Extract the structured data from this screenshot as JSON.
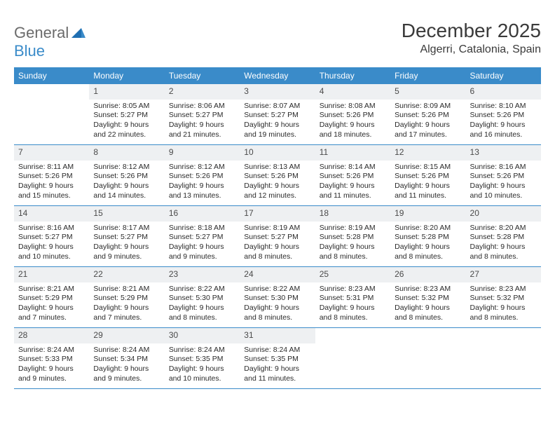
{
  "logo": {
    "text1": "General",
    "text2": "Blue"
  },
  "title": "December 2025",
  "location": "Algerri, Catalonia, Spain",
  "colors": {
    "header_bg": "#3a8bc9",
    "header_text": "#ffffff",
    "daybar_bg": "#eef0f2",
    "border": "#3a8bc9",
    "text": "#2a2a2a",
    "logo_gray": "#6b6b6b",
    "logo_blue": "#3a8bc9"
  },
  "dow": [
    "Sunday",
    "Monday",
    "Tuesday",
    "Wednesday",
    "Thursday",
    "Friday",
    "Saturday"
  ],
  "weeks": [
    [
      {
        "n": "",
        "sr": "",
        "ss": "",
        "dl": ""
      },
      {
        "n": "1",
        "sr": "Sunrise: 8:05 AM",
        "ss": "Sunset: 5:27 PM",
        "dl": "Daylight: 9 hours and 22 minutes."
      },
      {
        "n": "2",
        "sr": "Sunrise: 8:06 AM",
        "ss": "Sunset: 5:27 PM",
        "dl": "Daylight: 9 hours and 21 minutes."
      },
      {
        "n": "3",
        "sr": "Sunrise: 8:07 AM",
        "ss": "Sunset: 5:27 PM",
        "dl": "Daylight: 9 hours and 19 minutes."
      },
      {
        "n": "4",
        "sr": "Sunrise: 8:08 AM",
        "ss": "Sunset: 5:26 PM",
        "dl": "Daylight: 9 hours and 18 minutes."
      },
      {
        "n": "5",
        "sr": "Sunrise: 8:09 AM",
        "ss": "Sunset: 5:26 PM",
        "dl": "Daylight: 9 hours and 17 minutes."
      },
      {
        "n": "6",
        "sr": "Sunrise: 8:10 AM",
        "ss": "Sunset: 5:26 PM",
        "dl": "Daylight: 9 hours and 16 minutes."
      }
    ],
    [
      {
        "n": "7",
        "sr": "Sunrise: 8:11 AM",
        "ss": "Sunset: 5:26 PM",
        "dl": "Daylight: 9 hours and 15 minutes."
      },
      {
        "n": "8",
        "sr": "Sunrise: 8:12 AM",
        "ss": "Sunset: 5:26 PM",
        "dl": "Daylight: 9 hours and 14 minutes."
      },
      {
        "n": "9",
        "sr": "Sunrise: 8:12 AM",
        "ss": "Sunset: 5:26 PM",
        "dl": "Daylight: 9 hours and 13 minutes."
      },
      {
        "n": "10",
        "sr": "Sunrise: 8:13 AM",
        "ss": "Sunset: 5:26 PM",
        "dl": "Daylight: 9 hours and 12 minutes."
      },
      {
        "n": "11",
        "sr": "Sunrise: 8:14 AM",
        "ss": "Sunset: 5:26 PM",
        "dl": "Daylight: 9 hours and 11 minutes."
      },
      {
        "n": "12",
        "sr": "Sunrise: 8:15 AM",
        "ss": "Sunset: 5:26 PM",
        "dl": "Daylight: 9 hours and 11 minutes."
      },
      {
        "n": "13",
        "sr": "Sunrise: 8:16 AM",
        "ss": "Sunset: 5:26 PM",
        "dl": "Daylight: 9 hours and 10 minutes."
      }
    ],
    [
      {
        "n": "14",
        "sr": "Sunrise: 8:16 AM",
        "ss": "Sunset: 5:27 PM",
        "dl": "Daylight: 9 hours and 10 minutes."
      },
      {
        "n": "15",
        "sr": "Sunrise: 8:17 AM",
        "ss": "Sunset: 5:27 PM",
        "dl": "Daylight: 9 hours and 9 minutes."
      },
      {
        "n": "16",
        "sr": "Sunrise: 8:18 AM",
        "ss": "Sunset: 5:27 PM",
        "dl": "Daylight: 9 hours and 9 minutes."
      },
      {
        "n": "17",
        "sr": "Sunrise: 8:19 AM",
        "ss": "Sunset: 5:27 PM",
        "dl": "Daylight: 9 hours and 8 minutes."
      },
      {
        "n": "18",
        "sr": "Sunrise: 8:19 AM",
        "ss": "Sunset: 5:28 PM",
        "dl": "Daylight: 9 hours and 8 minutes."
      },
      {
        "n": "19",
        "sr": "Sunrise: 8:20 AM",
        "ss": "Sunset: 5:28 PM",
        "dl": "Daylight: 9 hours and 8 minutes."
      },
      {
        "n": "20",
        "sr": "Sunrise: 8:20 AM",
        "ss": "Sunset: 5:28 PM",
        "dl": "Daylight: 9 hours and 8 minutes."
      }
    ],
    [
      {
        "n": "21",
        "sr": "Sunrise: 8:21 AM",
        "ss": "Sunset: 5:29 PM",
        "dl": "Daylight: 9 hours and 7 minutes."
      },
      {
        "n": "22",
        "sr": "Sunrise: 8:21 AM",
        "ss": "Sunset: 5:29 PM",
        "dl": "Daylight: 9 hours and 7 minutes."
      },
      {
        "n": "23",
        "sr": "Sunrise: 8:22 AM",
        "ss": "Sunset: 5:30 PM",
        "dl": "Daylight: 9 hours and 8 minutes."
      },
      {
        "n": "24",
        "sr": "Sunrise: 8:22 AM",
        "ss": "Sunset: 5:30 PM",
        "dl": "Daylight: 9 hours and 8 minutes."
      },
      {
        "n": "25",
        "sr": "Sunrise: 8:23 AM",
        "ss": "Sunset: 5:31 PM",
        "dl": "Daylight: 9 hours and 8 minutes."
      },
      {
        "n": "26",
        "sr": "Sunrise: 8:23 AM",
        "ss": "Sunset: 5:32 PM",
        "dl": "Daylight: 9 hours and 8 minutes."
      },
      {
        "n": "27",
        "sr": "Sunrise: 8:23 AM",
        "ss": "Sunset: 5:32 PM",
        "dl": "Daylight: 9 hours and 8 minutes."
      }
    ],
    [
      {
        "n": "28",
        "sr": "Sunrise: 8:24 AM",
        "ss": "Sunset: 5:33 PM",
        "dl": "Daylight: 9 hours and 9 minutes."
      },
      {
        "n": "29",
        "sr": "Sunrise: 8:24 AM",
        "ss": "Sunset: 5:34 PM",
        "dl": "Daylight: 9 hours and 9 minutes."
      },
      {
        "n": "30",
        "sr": "Sunrise: 8:24 AM",
        "ss": "Sunset: 5:35 PM",
        "dl": "Daylight: 9 hours and 10 minutes."
      },
      {
        "n": "31",
        "sr": "Sunrise: 8:24 AM",
        "ss": "Sunset: 5:35 PM",
        "dl": "Daylight: 9 hours and 11 minutes."
      },
      {
        "n": "",
        "sr": "",
        "ss": "",
        "dl": ""
      },
      {
        "n": "",
        "sr": "",
        "ss": "",
        "dl": ""
      },
      {
        "n": "",
        "sr": "",
        "ss": "",
        "dl": ""
      }
    ]
  ]
}
